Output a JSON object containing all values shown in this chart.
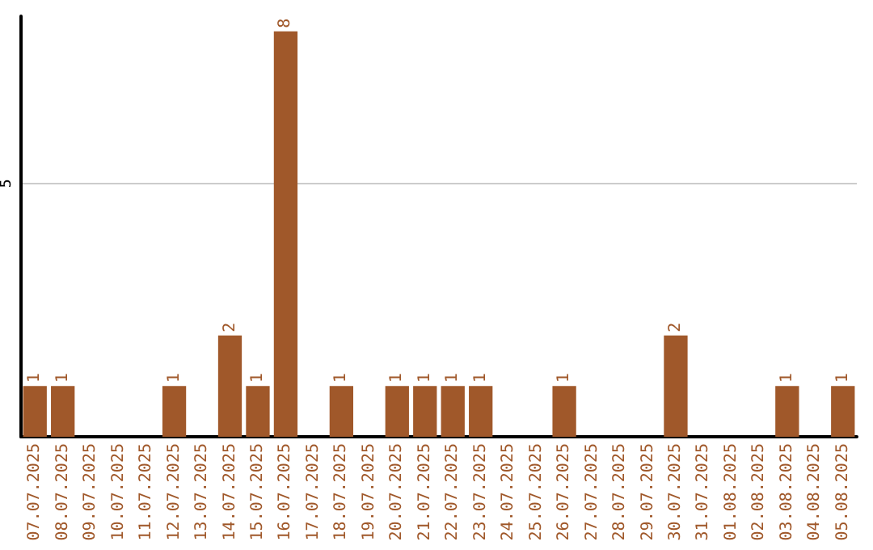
{
  "chart_data": {
    "type": "bar",
    "categories": [
      "07.07.2025",
      "08.07.2025",
      "09.07.2025",
      "10.07.2025",
      "11.07.2025",
      "12.07.2025",
      "13.07.2025",
      "14.07.2025",
      "15.07.2025",
      "16.07.2025",
      "17.07.2025",
      "18.07.2025",
      "19.07.2025",
      "20.07.2025",
      "21.07.2025",
      "22.07.2025",
      "23.07.2025",
      "24.07.2025",
      "25.07.2025",
      "26.07.2025",
      "27.07.2025",
      "28.07.2025",
      "29.07.2025",
      "30.07.2025",
      "31.07.2025",
      "01.08.2025",
      "02.08.2025",
      "03.08.2025",
      "04.08.2025",
      "05.08.2025"
    ],
    "values": [
      1,
      1,
      0,
      0,
      0,
      1,
      0,
      2,
      1,
      8,
      0,
      1,
      0,
      1,
      1,
      1,
      1,
      0,
      0,
      1,
      0,
      0,
      0,
      2,
      0,
      0,
      0,
      1,
      0,
      1
    ],
    "value_labels": [
      "1",
      "1",
      null,
      null,
      null,
      "1",
      null,
      "2",
      "1",
      "8",
      null,
      "1",
      null,
      "1",
      "1",
      "1",
      "1",
      null,
      null,
      "1",
      null,
      null,
      null,
      "2",
      null,
      null,
      null,
      "1",
      null,
      "1"
    ],
    "color": "#a0582a",
    "ylim": [
      0,
      8.3
    ],
    "yticks": [
      5
    ],
    "grid": "y"
  }
}
